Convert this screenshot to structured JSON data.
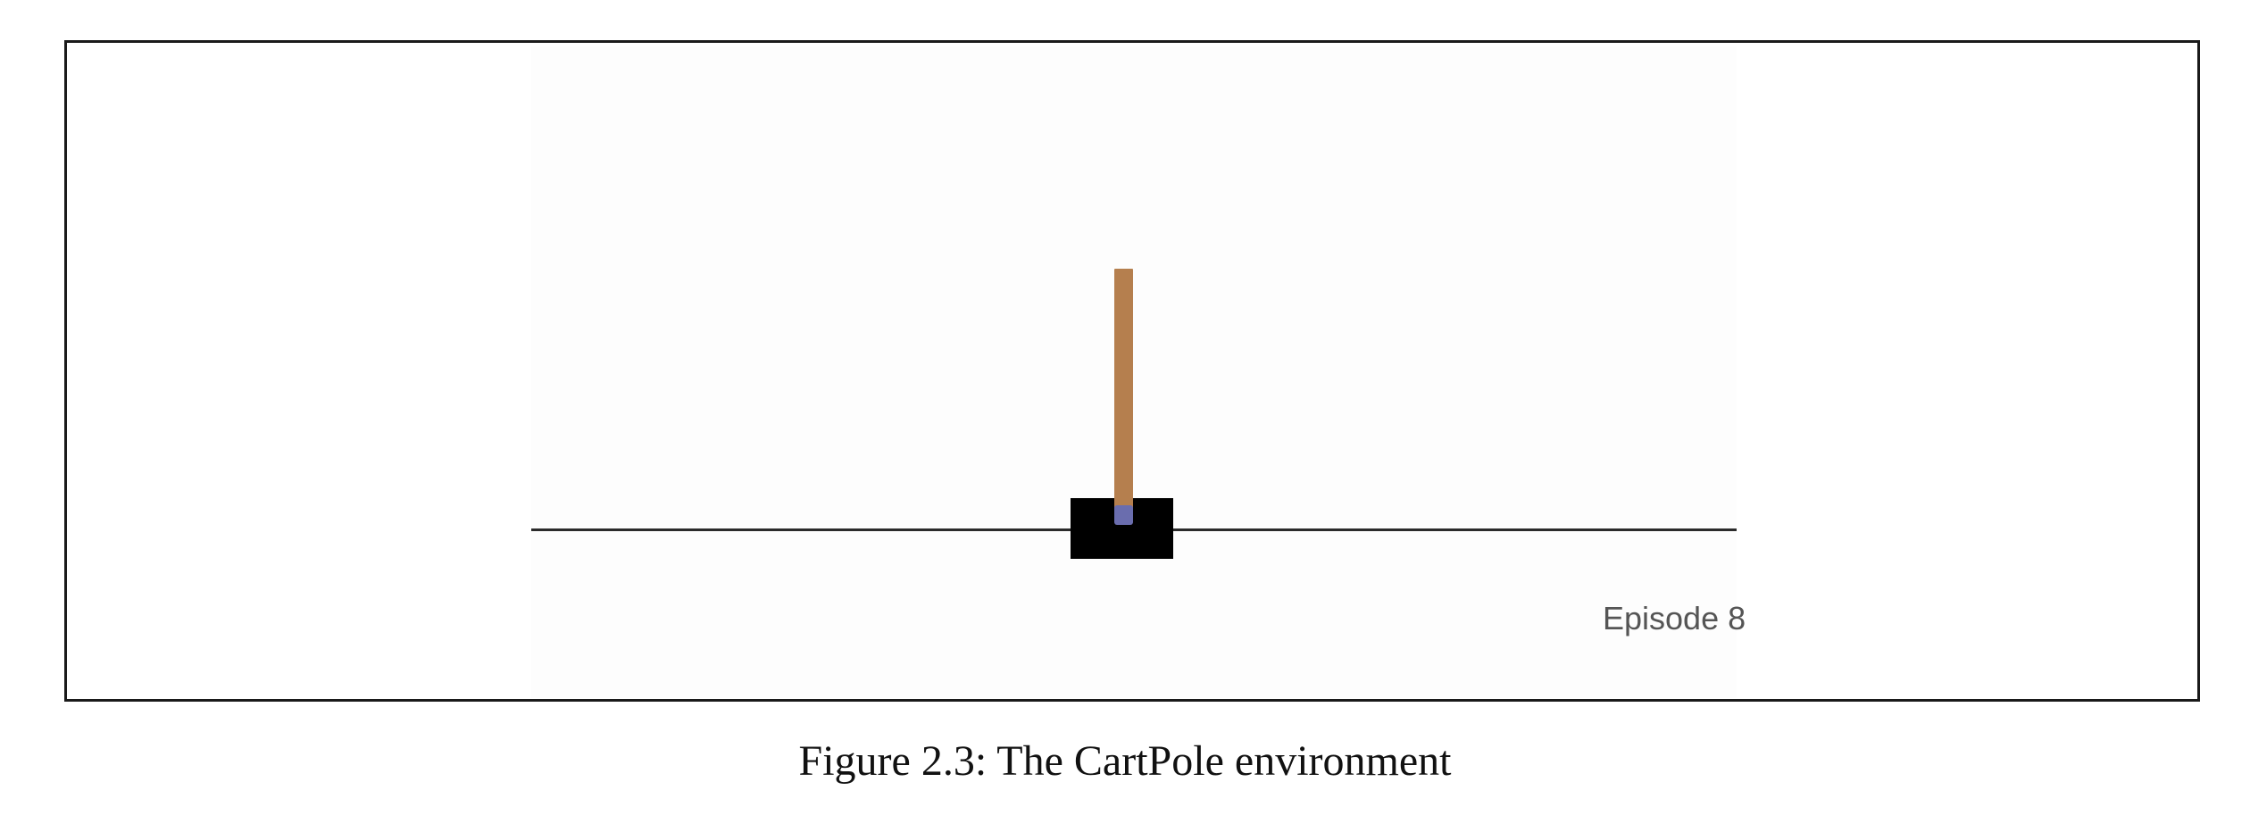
{
  "figure": {
    "episode_label": "Episode 8",
    "caption": "Figure 2.3: The CartPole environment"
  },
  "colors": {
    "cart": "#000000",
    "pole": "#b57f4e",
    "axle": "#6a6dae",
    "track": "#2b2b2b",
    "frame_border": "#1a1a1a"
  }
}
